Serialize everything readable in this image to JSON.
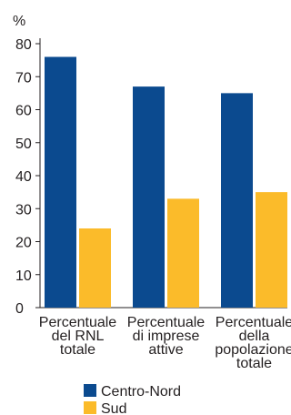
{
  "chart_data": {
    "type": "bar",
    "ylabel": "%",
    "ylim": [
      0,
      80
    ],
    "yticks": [
      0,
      10,
      20,
      30,
      40,
      50,
      60,
      70,
      80
    ],
    "categories": [
      [
        "Percentuale",
        "del RNL",
        "totale"
      ],
      [
        "Percentuale",
        "di imprese",
        "attive"
      ],
      [
        "Percentuale",
        "della",
        "popolazione",
        "totale"
      ]
    ],
    "series": [
      {
        "name": "Centro-Nord",
        "color": "#0b4a8f",
        "values": [
          76,
          67,
          65
        ]
      },
      {
        "name": "Sud",
        "color": "#fbbb2a",
        "values": [
          24,
          33,
          35
        ]
      }
    ],
    "legend_position": "bottom-left",
    "grid": false
  }
}
